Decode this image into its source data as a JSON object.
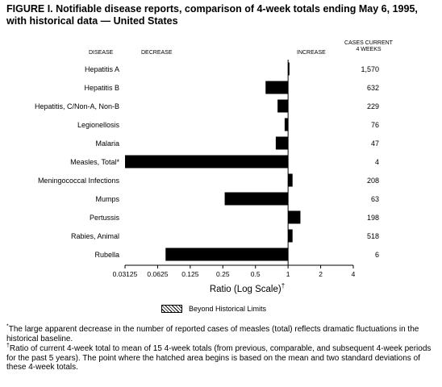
{
  "figure": {
    "title": "FIGURE I. Notifiable disease reports, comparison of 4-week totals ending May 6, 1995, with historical data — United States"
  },
  "headers": {
    "disease": "DISEASE",
    "decrease": "DECREASE",
    "increase": "INCREASE",
    "cases_line1": "CASES CURRENT",
    "cases_line2": "4 WEEKS"
  },
  "chart_data": {
    "type": "bar",
    "orientation": "horizontal",
    "scale": "log2",
    "xlabel": "Ratio (Log Scale)",
    "xlabel_mark": "†",
    "xlim": [
      0.03125,
      4
    ],
    "xticks": [
      0.03125,
      0.0625,
      0.125,
      0.25,
      0.5,
      1,
      2,
      4
    ],
    "xtick_labels": [
      "0.03125",
      "0.0625",
      "0.125",
      "0.25",
      "0.5",
      "1",
      "2",
      "4"
    ],
    "baseline": 1,
    "categories": [
      "Hepatitis A",
      "Hepatitis B",
      "Hepatitis, C/Non-A, Non-B",
      "Legionellosis",
      "Malaria",
      "Measles, Total*",
      "Meningococcal Infections",
      "Mumps",
      "Pertussis",
      "Rabies, Animal",
      "Rubella"
    ],
    "values": [
      1.03,
      0.62,
      0.8,
      0.93,
      0.77,
      0.03125,
      1.1,
      0.26,
      1.3,
      1.1,
      0.074
    ],
    "cases": [
      "1,570",
      "632",
      "229",
      "76",
      "47",
      "4",
      "208",
      "63",
      "198",
      "518",
      "6"
    ],
    "bar_color": "#000000"
  },
  "legend": {
    "label": "Beyond Historical Limits"
  },
  "footnotes": {
    "star_mark": "*",
    "star_text": "The large apparent decrease in the number of reported cases of measles (total) reflects dramatic fluctuations in the historical baseline.",
    "dagger_mark": "†",
    "dagger_text": "Ratio of current 4-week total to mean of 15 4-week totals (from previous, comparable, and subsequent 4-week periods for the past 5 years). The point where the hatched area begins is based on the mean and two standard deviations of these 4-week totals."
  }
}
